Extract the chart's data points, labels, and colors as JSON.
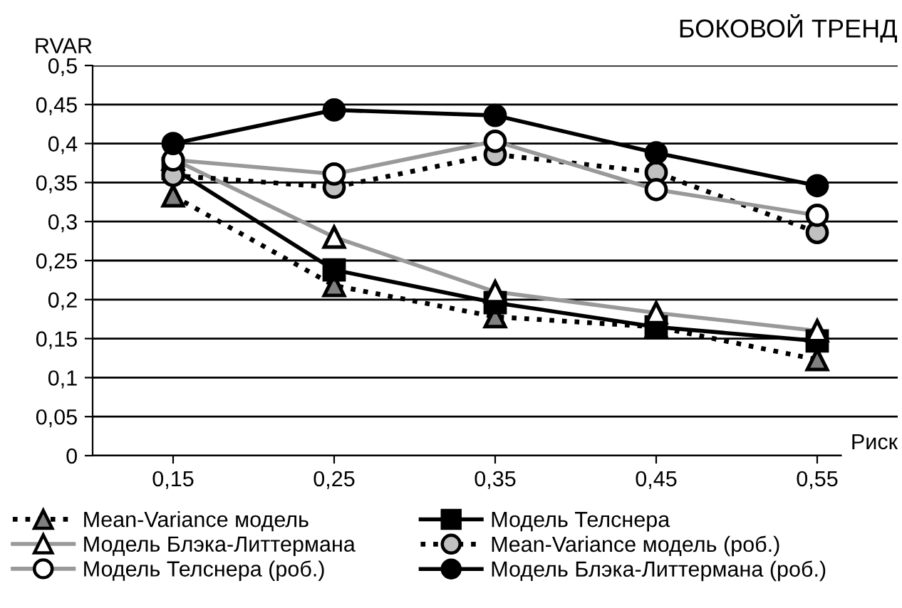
{
  "chart_data": {
    "type": "line",
    "title": "БОКОВОЙ ТРЕНД",
    "ylabel": "RVAR",
    "xlabel": "Риск",
    "categories": [
      "0,15",
      "0,25",
      "0,35",
      "0,45",
      "0,55"
    ],
    "ylim": [
      0,
      0.5
    ],
    "yticks": [
      0,
      {
        "value": 0.05,
        "label": "0,05"
      },
      {
        "value": 0.1,
        "label": "0,1"
      },
      {
        "value": 0.15,
        "label": "0,15"
      },
      {
        "value": 0.2,
        "label": "0,2"
      },
      {
        "value": 0.25,
        "label": "0,25"
      },
      {
        "value": 0.3,
        "label": "0,3"
      },
      {
        "value": 0.35,
        "label": "0,35"
      },
      {
        "value": 0.4,
        "label": "0,4"
      },
      {
        "value": 0.45,
        "label": "0,45"
      },
      {
        "value": 0.5,
        "label": "0,5"
      }
    ],
    "grid": "y",
    "legend": "bottom",
    "series": [
      {
        "name": "Mean-Variance модель",
        "color": "#000000",
        "line_style": "dotted",
        "marker": "triangle",
        "colors": [
          "#808080",
          "#808080",
          "#808080",
          "#808080",
          "#808080"
        ],
        "values": [
          0.333,
          0.218,
          0.178,
          0.165,
          0.123
        ]
      },
      {
        "name": "Модель Телснера",
        "color": "#000000",
        "line_style": "solid",
        "marker": "square",
        "colors": [
          "#000000",
          "#000000",
          "#000000",
          "#000000",
          "#000000"
        ],
        "values": [
          0.368,
          0.238,
          0.196,
          0.165,
          0.147
        ]
      },
      {
        "name": "Модель Блэка-Литтермана",
        "color": "#999999",
        "line_style": "solid",
        "marker": "triangle",
        "colors": [
          "#ffffff",
          "#ffffff",
          "#ffffff",
          "#ffffff",
          "#ffffff"
        ],
        "values": [
          0.38,
          0.28,
          0.21,
          0.183,
          0.16
        ]
      },
      {
        "name": "Mean-Variance модель (роб.)",
        "color": "#000000",
        "line_style": "dotted",
        "marker": "circle",
        "colors": [
          "#c0c0c0",
          "#c0c0c0",
          "#c0c0c0",
          "#c0c0c0",
          "#c0c0c0"
        ],
        "values": [
          0.359,
          0.344,
          0.386,
          0.363,
          0.286
        ]
      },
      {
        "name": "Модель Телснера (роб.)",
        "color": "#999999",
        "line_style": "solid",
        "marker": "circle",
        "colors": [
          "#ffffff",
          "#ffffff",
          "#ffffff",
          "#ffffff",
          "#ffffff"
        ],
        "values": [
          0.379,
          0.361,
          0.403,
          0.341,
          0.308
        ]
      },
      {
        "name": "Модель Блэка-Литтермана (роб.)",
        "color": "#000000",
        "line_style": "solid",
        "marker": "circle",
        "colors": [
          "#000000",
          "#000000",
          "#000000",
          "#000000",
          "#000000"
        ],
        "values": [
          0.4,
          0.443,
          0.436,
          0.388,
          0.346
        ]
      }
    ]
  }
}
